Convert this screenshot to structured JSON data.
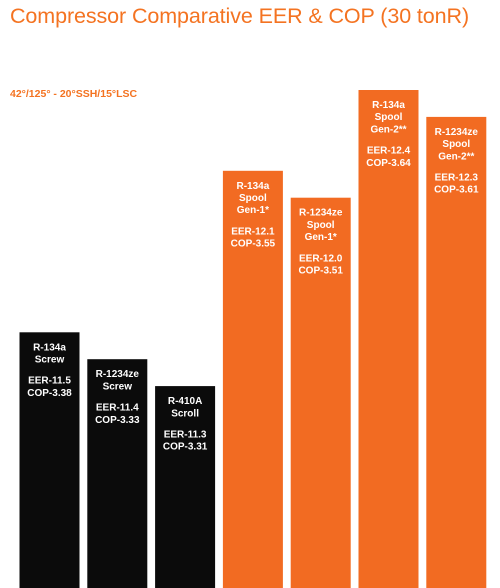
{
  "chart_data": {
    "type": "bar",
    "title": "Compressor Comparative EER & COP (30 tonR)",
    "subtitle": "42°/125° - 20°SSH/15°LSC",
    "xlabel": "",
    "ylabel": "",
    "colors": {
      "title": "#f47321",
      "orange_bars": "#f26b22",
      "black_bars": "#0b0b0b",
      "text_on_bars": "#ffffff"
    },
    "categories": [
      "R-134a Screw",
      "R-1234ze Screw",
      "R-410A Scroll",
      "R-134a Spool Gen-1*",
      "R-1234ze Spool Gen-1*",
      "R-134a Spool Gen-2**",
      "R-1234ze Spool Gen-2**"
    ],
    "bars": [
      {
        "label_lines": [
          "R-134a",
          "Screw"
        ],
        "eer_label": "EER-11.5",
        "cop_label": "COP-3.38",
        "eer": 11.5,
        "cop": 3.38,
        "color": "#0b0b0b"
      },
      {
        "label_lines": [
          "R-1234ze",
          "Screw"
        ],
        "eer_label": "EER-11.4",
        "cop_label": "COP-3.33",
        "eer": 11.4,
        "cop": 3.33,
        "color": "#0b0b0b"
      },
      {
        "label_lines": [
          "R-410A",
          "Scroll"
        ],
        "eer_label": "EER-11.3",
        "cop_label": "COP-3.31",
        "eer": 11.3,
        "cop": 3.31,
        "color": "#0b0b0b"
      },
      {
        "label_lines": [
          "R-134a",
          "Spool",
          "Gen-1*"
        ],
        "eer_label": "EER-12.1",
        "cop_label": "COP-3.55",
        "eer": 12.1,
        "cop": 3.55,
        "color": "#f26b22"
      },
      {
        "label_lines": [
          "R-1234ze",
          "Spool",
          "Gen-1*"
        ],
        "eer_label": "EER-12.0",
        "cop_label": "COP-3.51",
        "eer": 12.0,
        "cop": 3.51,
        "color": "#f26b22"
      },
      {
        "label_lines": [
          "R-134a",
          "Spool",
          "Gen-2**"
        ],
        "eer_label": "EER-12.4",
        "cop_label": "COP-3.64",
        "eer": 12.4,
        "cop": 3.64,
        "color": "#f26b22"
      },
      {
        "label_lines": [
          "R-1234ze",
          "Spool",
          "Gen-2**"
        ],
        "eer_label": "EER-12.3",
        "cop_label": "COP-3.61",
        "eer": 12.3,
        "cop": 3.61,
        "color": "#f26b22"
      }
    ],
    "values": [
      11.5,
      11.4,
      11.3,
      12.1,
      12.0,
      12.4,
      12.3
    ],
    "ylim": [
      10.55,
      12.4
    ],
    "grid": false,
    "legend": "none"
  }
}
